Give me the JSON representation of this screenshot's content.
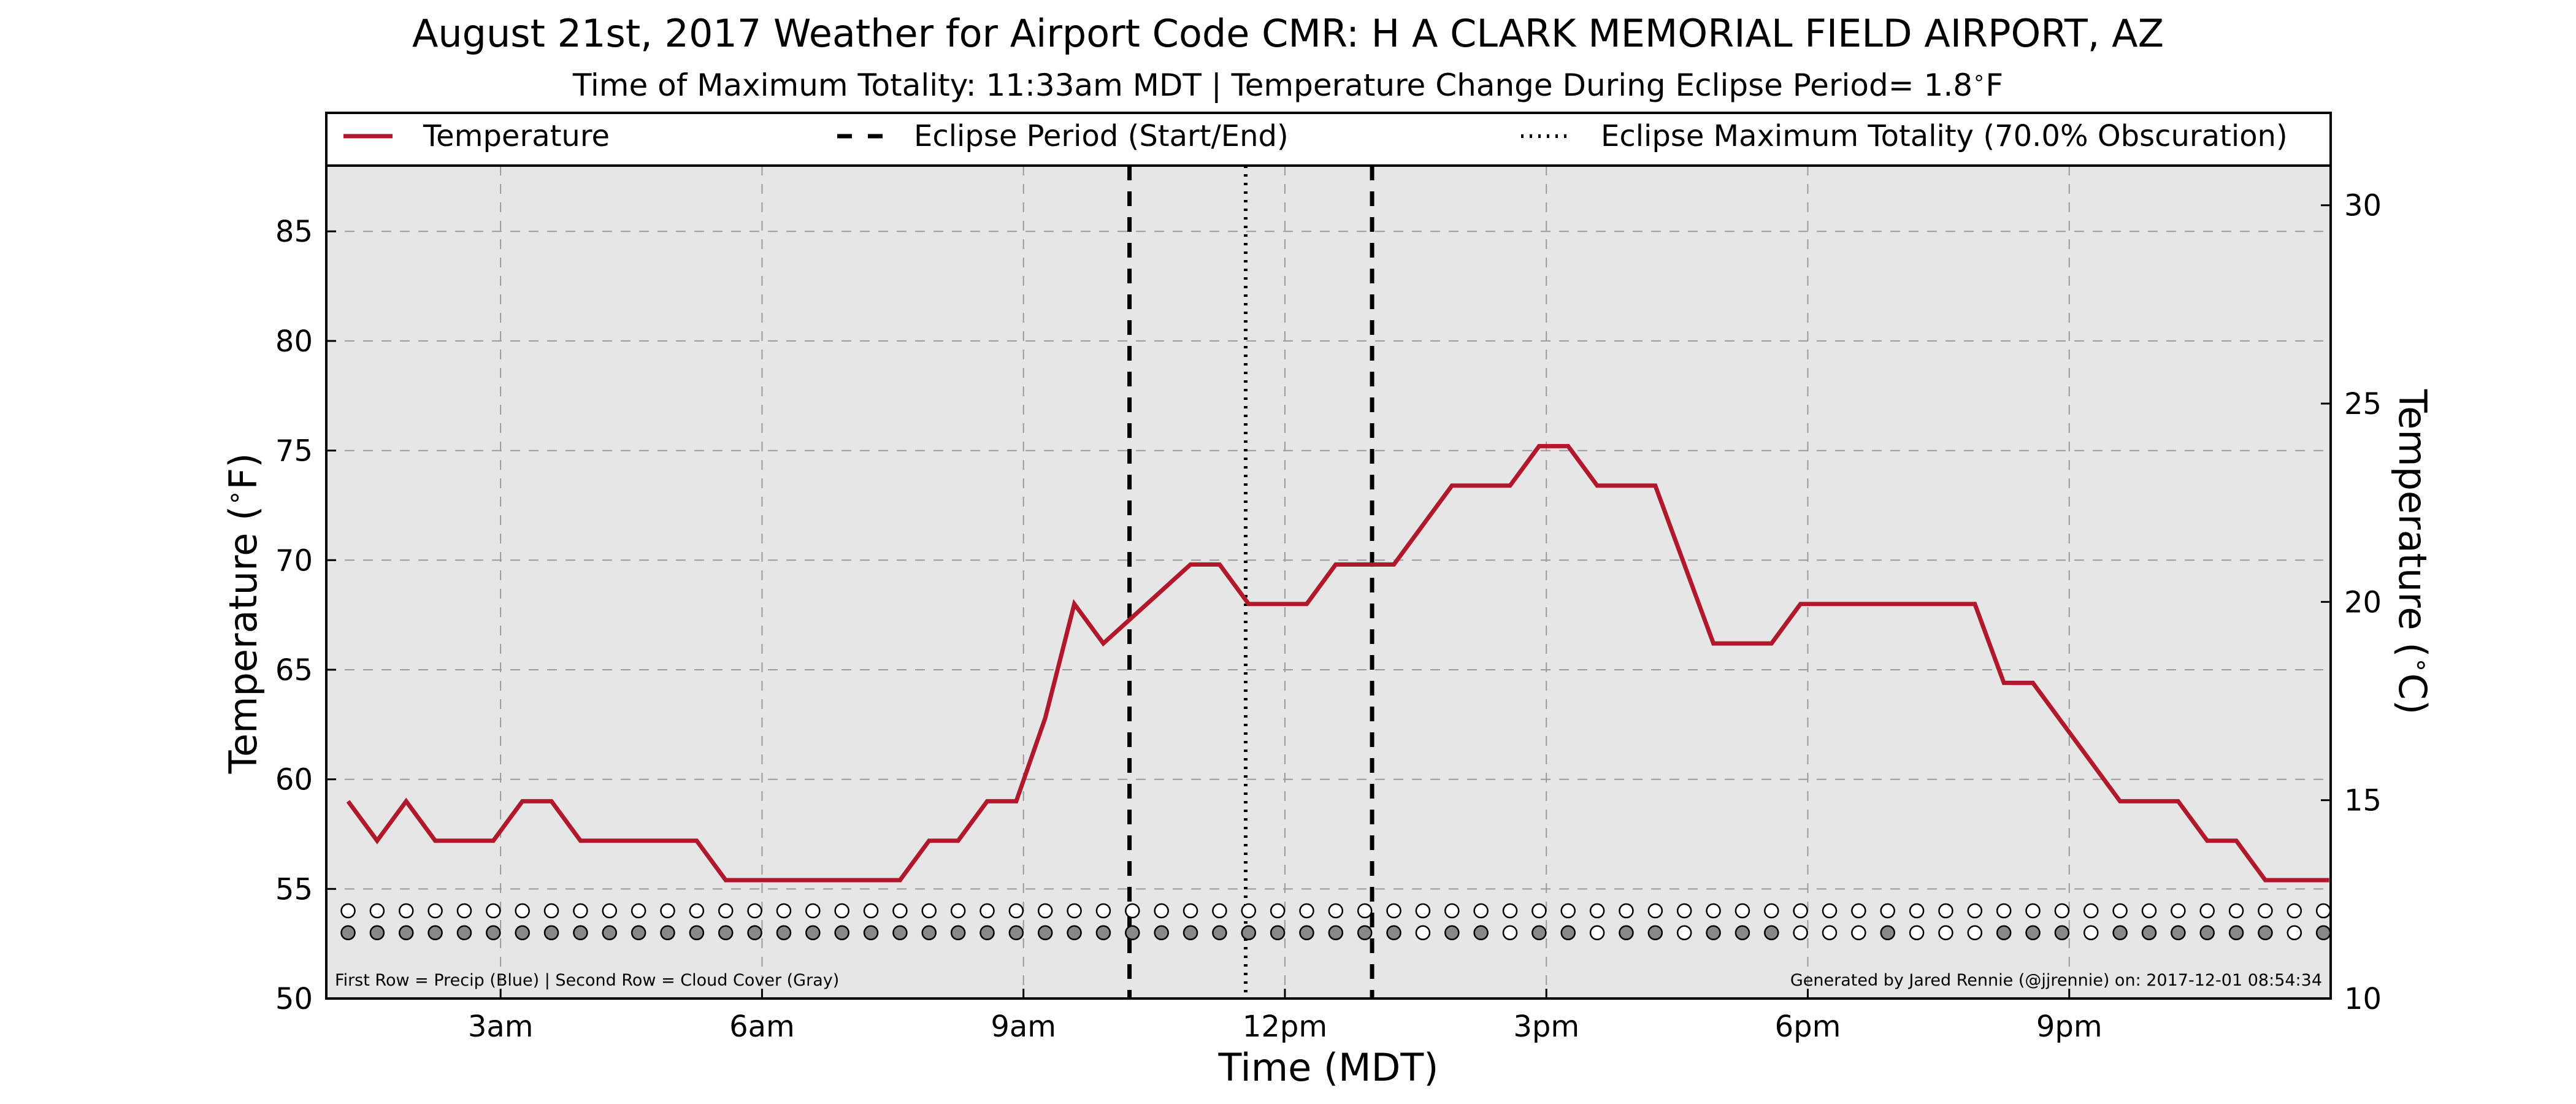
{
  "chart_data": {
    "type": "line",
    "title": "August 21st, 2017 Weather for Airport Code CMR: H A CLARK MEMORIAL FIELD AIRPORT, AZ",
    "subtitle": "Time of Maximum Totality: 11:33am MDT | Temperature Change During Eclipse Period= 1.8",
    "subtitle_unit": "F",
    "xlabel": "Time (MDT)",
    "ylabel_left": "Temperature (",
    "ylabel_left_unit": "F)",
    "ylabel_right": "Temperature (",
    "ylabel_right_unit": "C)",
    "degree_symbol": "∘",
    "xlim": [
      "2017-08-21 01:00",
      "2017-08-21 24:00"
    ],
    "ylim_f": [
      50,
      88
    ],
    "ylim_c": [
      10,
      31
    ],
    "x_ticks": [
      {
        "t": "03:00",
        "label": "3am"
      },
      {
        "t": "06:00",
        "label": "6am"
      },
      {
        "t": "09:00",
        "label": "9am"
      },
      {
        "t": "12:00",
        "label": "12pm"
      },
      {
        "t": "15:00",
        "label": "3pm"
      },
      {
        "t": "18:00",
        "label": "6pm"
      },
      {
        "t": "21:00",
        "label": "9pm"
      }
    ],
    "y_ticks_f": [
      50,
      55,
      60,
      65,
      70,
      75,
      80,
      85
    ],
    "y_ticks_c": [
      10,
      15,
      20,
      25,
      30
    ],
    "grid": true,
    "legend_position": "top",
    "legend": [
      {
        "label": "Temperature",
        "style": "solid"
      },
      {
        "label": "Eclipse Period (Start/End)",
        "style": "dashed"
      },
      {
        "label": "Eclipse Maximum Totality (70.0% Obscuration)",
        "style": "dotted"
      }
    ],
    "series": [
      {
        "name": "Temperature",
        "color": "#b2182b",
        "points": [
          [
            "01:15",
            59.0
          ],
          [
            "01:35",
            57.2
          ],
          [
            "01:55",
            59.0
          ],
          [
            "02:15",
            57.2
          ],
          [
            "02:55",
            57.2
          ],
          [
            "03:15",
            59.0
          ],
          [
            "03:35",
            59.0
          ],
          [
            "03:55",
            57.2
          ],
          [
            "05:15",
            57.2
          ],
          [
            "05:35",
            55.4
          ],
          [
            "07:35",
            55.4
          ],
          [
            "07:55",
            57.2
          ],
          [
            "08:15",
            57.2
          ],
          [
            "08:35",
            59.0
          ],
          [
            "08:55",
            59.0
          ],
          [
            "09:15",
            62.8
          ],
          [
            "09:35",
            68.0
          ],
          [
            "09:55",
            66.2
          ],
          [
            "10:55",
            69.8
          ],
          [
            "11:15",
            69.8
          ],
          [
            "11:35",
            68.0
          ],
          [
            "12:15",
            68.0
          ],
          [
            "12:35",
            69.8
          ],
          [
            "13:15",
            69.8
          ],
          [
            "13:55",
            73.4
          ],
          [
            "14:35",
            73.4
          ],
          [
            "14:55",
            75.2
          ],
          [
            "15:15",
            75.2
          ],
          [
            "15:35",
            73.4
          ],
          [
            "16:15",
            73.4
          ],
          [
            "16:55",
            66.2
          ],
          [
            "17:35",
            66.2
          ],
          [
            "17:55",
            68.0
          ],
          [
            "19:55",
            68.0
          ],
          [
            "20:15",
            64.4
          ],
          [
            "20:35",
            64.4
          ],
          [
            "21:35",
            59.0
          ],
          [
            "22:15",
            59.0
          ],
          [
            "22:35",
            57.2
          ],
          [
            "22:55",
            57.2
          ],
          [
            "23:15",
            55.4
          ],
          [
            "23:59",
            55.4
          ]
        ]
      }
    ],
    "eclipse_start": "10:13",
    "eclipse_max": "11:33",
    "eclipse_end": "13:00",
    "precip_row": {
      "label": "First Row = Precip (Blue)",
      "y_f": 54.0,
      "times": [
        "01:15",
        "01:35",
        "01:55",
        "02:15",
        "02:35",
        "02:55",
        "03:15",
        "03:35",
        "03:55",
        "04:15",
        "04:35",
        "04:55",
        "05:15",
        "05:35",
        "05:55",
        "06:15",
        "06:35",
        "06:55",
        "07:15",
        "07:35",
        "07:55",
        "08:15",
        "08:35",
        "08:55",
        "09:15",
        "09:35",
        "09:55",
        "10:15",
        "10:35",
        "10:55",
        "11:15",
        "11:35",
        "11:55",
        "12:15",
        "12:35",
        "12:55",
        "13:15",
        "13:35",
        "13:55",
        "14:15",
        "14:35",
        "14:55",
        "15:15",
        "15:35",
        "15:55",
        "16:15",
        "16:35",
        "16:55",
        "17:15",
        "17:35",
        "17:55",
        "18:15",
        "18:35",
        "18:55",
        "19:15",
        "19:35",
        "19:55",
        "20:15",
        "20:35",
        "20:55",
        "21:15",
        "21:35",
        "21:55",
        "22:15",
        "22:35",
        "22:55",
        "23:15",
        "23:35",
        "23:55"
      ],
      "precip": [
        0,
        0,
        0,
        0,
        0,
        0,
        0,
        0,
        0,
        0,
        0,
        0,
        0,
        0,
        0,
        0,
        0,
        0,
        0,
        0,
        0,
        0,
        0,
        0,
        0,
        0,
        0,
        0,
        0,
        0,
        0,
        0,
        0,
        0,
        0,
        0,
        0,
        0,
        0,
        0,
        0,
        0,
        0,
        0,
        0,
        0,
        0,
        0,
        0,
        0,
        0,
        0,
        0,
        0,
        0,
        0,
        0,
        0,
        0,
        0,
        0,
        0,
        0,
        0,
        0,
        0,
        0,
        0,
        0
      ],
      "precip_color": "#1f77b4"
    },
    "cloud_row": {
      "label": "Second Row = Cloud Cover (Gray)",
      "y_f": 53.0,
      "cloud": [
        1,
        1,
        1,
        1,
        1,
        1,
        1,
        1,
        1,
        1,
        1,
        1,
        1,
        1,
        1,
        1,
        1,
        1,
        1,
        1,
        1,
        1,
        1,
        1,
        1,
        1,
        1,
        1,
        1,
        1,
        1,
        1,
        1,
        1,
        1,
        1,
        1,
        0,
        1,
        1,
        0,
        1,
        1,
        0,
        1,
        1,
        0,
        1,
        1,
        1,
        0,
        0,
        0,
        1,
        0,
        0,
        0,
        1,
        1,
        1,
        0,
        1,
        1,
        1,
        1,
        1,
        1,
        0,
        1
      ],
      "cloud_color": "#888888"
    },
    "footnote_left": "First Row = Precip (Blue) | Second Row = Cloud Cover (Gray)",
    "footnote_right": "Generated by Jared Rennie (@jjrennie) on: 2017-12-01 08:54:34"
  }
}
